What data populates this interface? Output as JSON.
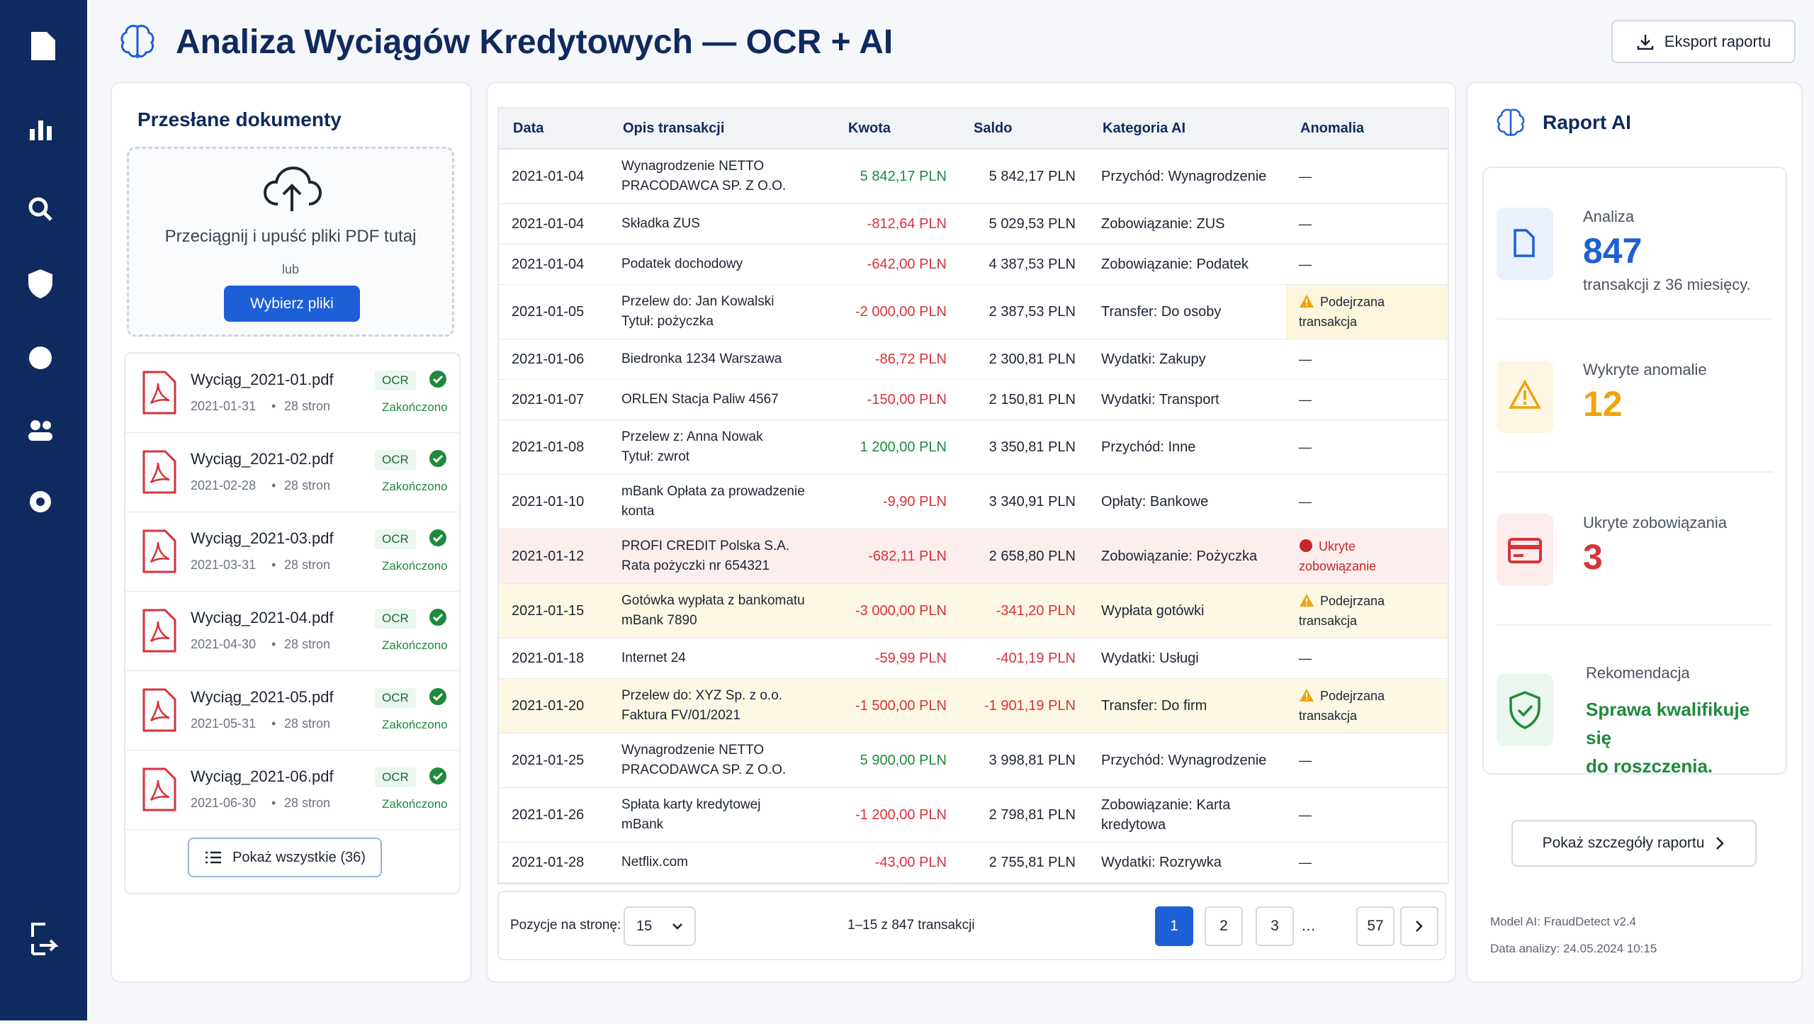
{
  "header": {
    "title": "Analiza Wyciągów Kredytowych — OCR + AI",
    "export": "Eksport raportu"
  },
  "upload": {
    "title": "Przesłane dokumenty",
    "drop": "Przeciągnij i upuść pliki PDF tutaj",
    "or": "lub",
    "button": "Wybierz pliki",
    "files": [
      {
        "name": "Wyciąg_2021-01.pdf",
        "date": "2021-01-31",
        "pages": "28 stron",
        "badge": "OCR",
        "status": "Zakończono"
      },
      {
        "name": "Wyciąg_2021-02.pdf",
        "date": "2021-02-28",
        "pages": "28 stron",
        "badge": "OCR",
        "status": "Zakończono"
      },
      {
        "name": "Wyciąg_2021-03.pdf",
        "date": "2021-03-31",
        "pages": "28 stron",
        "badge": "OCR",
        "status": "Zakończono"
      },
      {
        "name": "Wyciąg_2021-04.pdf",
        "date": "2021-04-30",
        "pages": "28 stron",
        "badge": "OCR",
        "status": "Zakończono"
      },
      {
        "name": "Wyciąg_2021-05.pdf",
        "date": "2021-05-31",
        "pages": "28 stron",
        "badge": "OCR",
        "status": "Zakończono"
      },
      {
        "name": "Wyciąg_2021-06.pdf",
        "date": "2021-06-30",
        "pages": "28 stron",
        "badge": "OCR",
        "status": "Zakończono"
      }
    ],
    "show_all": "Pokaż wszystkie (36)"
  },
  "table": {
    "columns": [
      "Data",
      "Opis transakcji",
      "Kwota",
      "Saldo",
      "Kategoria AI",
      "Anomalia"
    ],
    "rows": [
      {
        "cells": [
          "2021-01-04",
          "Wynagrodzenie NETTO\nPRACODAWCA SP. Z O.O.",
          "5 842,17 PLN",
          "5 842,17 PLN",
          "Przychód: Wynagrodzenie",
          "—"
        ],
        "amount_color": "#1e8a3c"
      },
      {
        "cells": [
          "2021-01-04",
          "Składka ZUS",
          "-812,64 PLN",
          "5 029,53 PLN",
          "Zobowiązanie: ZUS",
          "—"
        ]
      },
      {
        "cells": [
          "2021-01-04",
          "Podatek dochodowy",
          "-642,00 PLN",
          "4 387,53 PLN",
          "Zobowiązanie: Podatek",
          "—"
        ]
      },
      {
        "cells": [
          "2021-01-05",
          "Przelew do: Jan Kowalski\nTytuł: pożyczka",
          "-2 000,00 PLN",
          "2 387,53 PLN",
          "Transfer: Do osoby",
          "Podejrzana transakcja"
        ],
        "anomaly_bg": "#fdf6dc",
        "anomaly_icon": "warning"
      },
      {
        "cells": [
          "2021-01-06",
          "Biedronka 1234 Warszawa",
          "-86,72 PLN",
          "2 300,81 PLN",
          "Wydatki: Zakupy",
          "—"
        ]
      },
      {
        "cells": [
          "2021-01-07",
          "ORLEN Stacja Paliw 4567",
          "-150,00 PLN",
          "2 150,81 PLN",
          "Wydatki: Transport",
          "—"
        ]
      },
      {
        "cells": [
          "2021-01-08",
          "Przelew z: Anna Nowak\nTytuł: zwrot",
          "1 200,00 PLN",
          "3 350,81 PLN",
          "Przychód: Inne",
          "—"
        ],
        "amount_color": "#1e8a3c"
      },
      {
        "cells": [
          "2021-01-10",
          "mBank Opłata za prowadzenie\nkonta",
          "-9,90 PLN",
          "3 340,91 PLN",
          "Opłaty: Bankowe",
          "—"
        ]
      },
      {
        "cells": [
          "2021-01-12",
          "PROFI CREDIT Polska S.A.\nRata pożyczki nr 654321",
          "-682,11 PLN",
          "2 658,80 PLN",
          "Zobowiązanie: Pożyczka",
          "Ukryte zobowiązanie"
        ],
        "row_bg": "#fdeeee",
        "anomaly_icon": "danger",
        "anomaly_color": "#c62828"
      },
      {
        "cells": [
          "2021-01-15",
          "Gotówka wypłata z bankomatu\nmBank 7890",
          "-3 000,00 PLN",
          "-341,20 PLN",
          "Wypłata gotówki",
          "Podejrzana transakcja"
        ],
        "row_bg": "#fdf8e4",
        "balance_color": "#d6333a",
        "anomaly_icon": "warning"
      },
      {
        "cells": [
          "2021-01-18",
          "Internet 24",
          "-59,99 PLN",
          "-401,19 PLN",
          "Wydatki: Usługi",
          "—"
        ],
        "balance_color": "#d6333a"
      },
      {
        "cells": [
          "2021-01-20",
          "Przelew do: XYZ Sp. z o.o.\nFaktura FV/01/2021",
          "-1 500,00 PLN",
          "-1 901,19 PLN",
          "Transfer: Do firm",
          "Podejrzana transakcja"
        ],
        "row_bg": "#fdf8e4",
        "balance_color": "#d6333a",
        "anomaly_icon": "warning"
      },
      {
        "cells": [
          "2021-01-25",
          "Wynagrodzenie NETTO\nPRACODAWCA SP. Z O.O.",
          "5 900,00 PLN",
          "3 998,81 PLN",
          "Przychód: Wynagrodzenie",
          "—"
        ],
        "amount_color": "#1e8a3c"
      },
      {
        "cells": [
          "2021-01-26",
          "Spłata karty kredytowej\nmBank",
          "-1 200,00 PLN",
          "2 798,81 PLN",
          "Zobowiązanie: Karta kredytowa",
          "—"
        ]
      },
      {
        "cells": [
          "2021-01-28",
          "Netflix.com",
          "-43,00 PLN",
          "2 755,81 PLN",
          "Wydatki: Rozrywka",
          "—"
        ]
      }
    ]
  },
  "pagination": {
    "per_page_label": "Pozycje na stronę:",
    "per_page": "15",
    "range": "1–15 z 847 transakcji",
    "pages": [
      "1",
      "2",
      "3",
      "…",
      "57"
    ]
  },
  "report": {
    "title": "Raport AI",
    "cards": [
      {
        "label": "Analiza",
        "value": "847",
        "note": "transakcji z 36 miesięcy.",
        "color": "#1d5fd6",
        "tint": "#eaf1fd"
      },
      {
        "label": "Wykryte anomalie",
        "value": "12",
        "color": "#f0a30a",
        "tint": "#fef6e4"
      },
      {
        "label": "Ukryte zobowiązania",
        "value": "3",
        "color": "#d6333a",
        "tint": "#fdecec"
      },
      {
        "label": "Rekomendacja",
        "value": "Sprawa kwalifikuje się\ndo roszczenia.",
        "color": "#1e8a3c",
        "tint": "#eaf6ee"
      }
    ],
    "button": "Pokaż szczegóły raportu",
    "model": "Model AI: FraudDetect v2.4",
    "date": "Data analizy: 24.05.2024 10:15"
  }
}
